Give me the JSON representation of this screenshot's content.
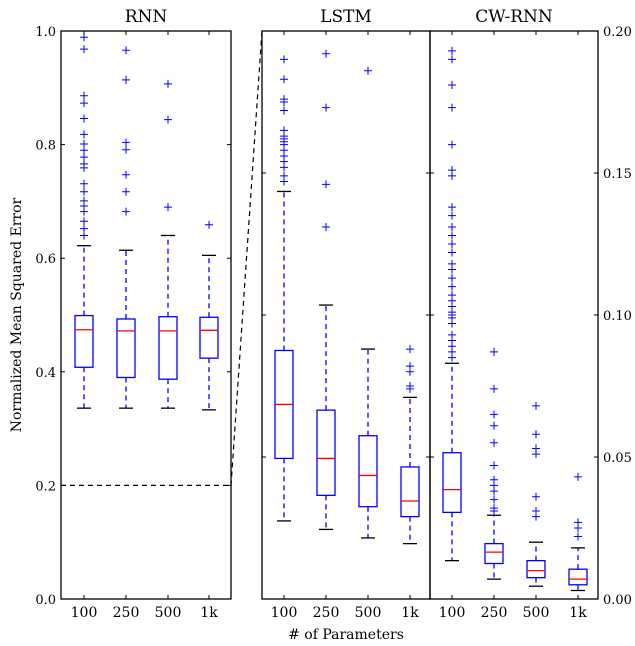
{
  "chart_data": [
    {
      "type": "boxplot",
      "title": "RNN",
      "ylabel": "Normalized Mean Squared Error",
      "ylim": [
        0.0,
        1.0
      ],
      "yticks": [
        "0.0",
        "0.2",
        "0.4",
        "0.6",
        "0.8",
        "1.0"
      ],
      "categories": [
        "100",
        "250",
        "500",
        "1k"
      ],
      "reference_line": 0.2,
      "boxes": [
        {
          "label": "100",
          "whislo": 0.336,
          "q1": 0.408,
          "med": 0.474,
          "q3": 0.499,
          "whishi": 0.622,
          "fliers": [
            0.64,
            0.652,
            0.665,
            0.682,
            0.692,
            0.701,
            0.717,
            0.731,
            0.759,
            0.766,
            0.778,
            0.79,
            0.801,
            0.818,
            0.846,
            0.873,
            0.886,
            0.968,
            0.989
          ]
        },
        {
          "label": "250",
          "whislo": 0.336,
          "q1": 0.39,
          "med": 0.472,
          "q3": 0.493,
          "whishi": 0.614,
          "fliers": [
            0.682,
            0.717,
            0.747,
            0.791,
            0.804,
            0.914,
            0.966
          ]
        },
        {
          "label": "500",
          "whislo": 0.336,
          "q1": 0.387,
          "med": 0.472,
          "q3": 0.497,
          "whishi": 0.64,
          "fliers": [
            0.69,
            0.844,
            0.907
          ]
        },
        {
          "label": "1k",
          "whislo": 0.333,
          "q1": 0.424,
          "med": 0.473,
          "q3": 0.496,
          "whishi": 0.605,
          "fliers": [
            0.659
          ]
        }
      ]
    },
    {
      "type": "boxplot",
      "title": "LSTM",
      "ylim": [
        0.0,
        0.2
      ],
      "yticks": [
        "0.00",
        "0.05",
        "0.10",
        "0.15",
        "0.20"
      ],
      "categories": [
        "100",
        "250",
        "500",
        "1k"
      ],
      "boxes": [
        {
          "label": "100",
          "whislo": 0.0275,
          "q1": 0.0495,
          "med": 0.0685,
          "q3": 0.0875,
          "whishi": 0.1435,
          "fliers": [
            0.147,
            0.149,
            0.152,
            0.154,
            0.156,
            0.158,
            0.16,
            0.161,
            0.162,
            0.163,
            0.165,
            0.172,
            0.175,
            0.176,
            0.183,
            0.19
          ]
        },
        {
          "label": "250",
          "whislo": 0.0245,
          "q1": 0.0365,
          "med": 0.0495,
          "q3": 0.0665,
          "whishi": 0.1035,
          "fliers": [
            0.131,
            0.146,
            0.173,
            0.192
          ]
        },
        {
          "label": "500",
          "whislo": 0.0215,
          "q1": 0.0325,
          "med": 0.0435,
          "q3": 0.0575,
          "whishi": 0.088,
          "fliers": [
            0.186
          ]
        },
        {
          "label": "1k",
          "whislo": 0.0195,
          "q1": 0.029,
          "med": 0.0345,
          "q3": 0.0465,
          "whishi": 0.071,
          "fliers": [
            0.074,
            0.075,
            0.08,
            0.082,
            0.088
          ]
        }
      ]
    },
    {
      "type": "boxplot",
      "title": "CW-RNN",
      "xlabel": "# of Parameters",
      "ylim": [
        0.0,
        0.2
      ],
      "yticks": [
        "0.00",
        "0.05",
        "0.10",
        "0.15",
        "0.20"
      ],
      "categories": [
        "100",
        "250",
        "500",
        "1k"
      ],
      "boxes": [
        {
          "label": "100",
          "whislo": 0.0135,
          "q1": 0.0305,
          "med": 0.0385,
          "q3": 0.0515,
          "whishi": 0.083,
          "fliers": [
            0.085,
            0.087,
            0.089,
            0.091,
            0.093,
            0.097,
            0.099,
            0.1,
            0.101,
            0.103,
            0.105,
            0.107,
            0.11,
            0.113,
            0.116,
            0.118,
            0.122,
            0.125,
            0.128,
            0.131,
            0.135,
            0.138,
            0.149,
            0.151,
            0.16,
            0.173,
            0.181,
            0.19,
            0.193
          ]
        },
        {
          "label": "250",
          "whislo": 0.007,
          "q1": 0.0125,
          "med": 0.0165,
          "q3": 0.0195,
          "whishi": 0.0295,
          "fliers": [
            0.031,
            0.032,
            0.035,
            0.038,
            0.04,
            0.042,
            0.047,
            0.055,
            0.061,
            0.065,
            0.074,
            0.087
          ]
        },
        {
          "label": "500",
          "whislo": 0.0045,
          "q1": 0.0075,
          "med": 0.01,
          "q3": 0.0135,
          "whishi": 0.02,
          "fliers": [
            0.029,
            0.031,
            0.036,
            0.051,
            0.053,
            0.058,
            0.068
          ]
        },
        {
          "label": "1k",
          "whislo": 0.003,
          "q1": 0.005,
          "med": 0.007,
          "q3": 0.0105,
          "whishi": 0.018,
          "fliers": [
            0.022,
            0.025,
            0.027,
            0.043
          ]
        }
      ]
    }
  ]
}
